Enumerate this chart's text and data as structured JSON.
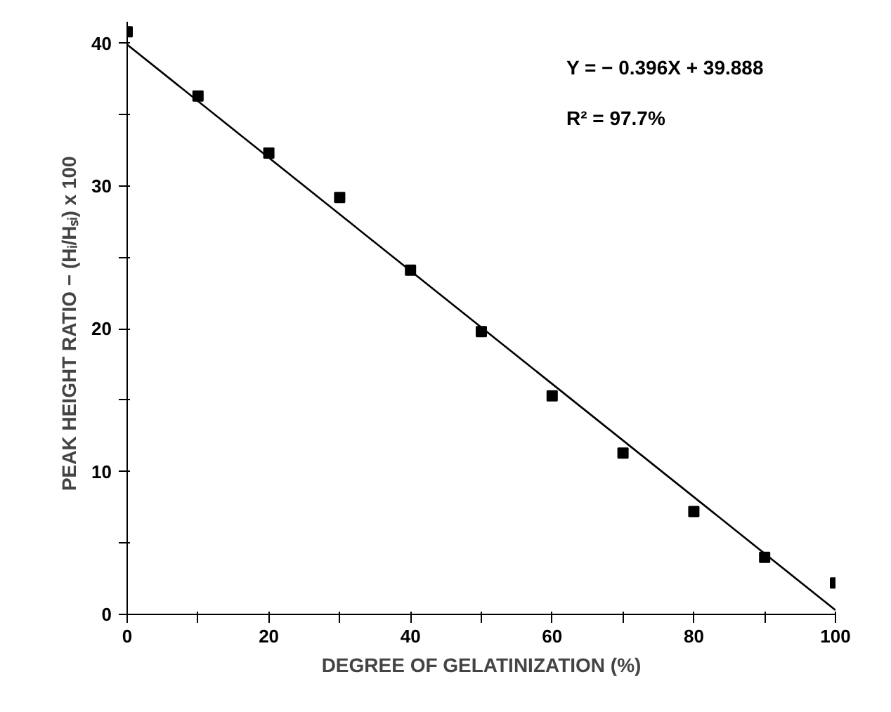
{
  "chart_data": {
    "type": "scatter",
    "xlabel": "DEGREE OF GELATINIZATION (%)",
    "ylabel": "PEAK HEIGHT RATIO  −  (Hᵢ/Hₛᵢ) x 100",
    "x": [
      0,
      10,
      20,
      30,
      40,
      50,
      60,
      70,
      80,
      90,
      100
    ],
    "series": [
      {
        "color": "#000000",
        "marker": "square",
        "values": [
          40.8,
          36.3,
          32.3,
          29.2,
          24.1,
          19.8,
          15.3,
          11.3,
          7.2,
          4.0,
          2.2
        ]
      },
      {
        "type": "line",
        "color": "#000000",
        "marker": "none",
        "line_style": "solid",
        "x": [
          0,
          100
        ],
        "values": [
          39.9,
          0.3
        ]
      }
    ],
    "annotations": [
      "Y  =  − 0.396X  +  39.888",
      "R² = 97.7%"
    ],
    "xlim": [
      0,
      100
    ],
    "ylim": [
      0,
      41.5
    ],
    "xticks": [
      0,
      {
        "value": 10,
        "label": null
      },
      20,
      {
        "value": 30,
        "label": null
      },
      40,
      {
        "value": 50,
        "label": null
      },
      60,
      {
        "value": 70,
        "label": null
      },
      80,
      {
        "value": 90,
        "label": null
      },
      100
    ],
    "yticks": [
      0,
      {
        "value": 5,
        "label": null
      },
      10,
      {
        "value": 15,
        "label": null
      },
      20,
      {
        "value": 25,
        "label": null
      },
      30,
      {
        "value": 35,
        "label": null
      },
      40
    ],
    "grid": false
  }
}
